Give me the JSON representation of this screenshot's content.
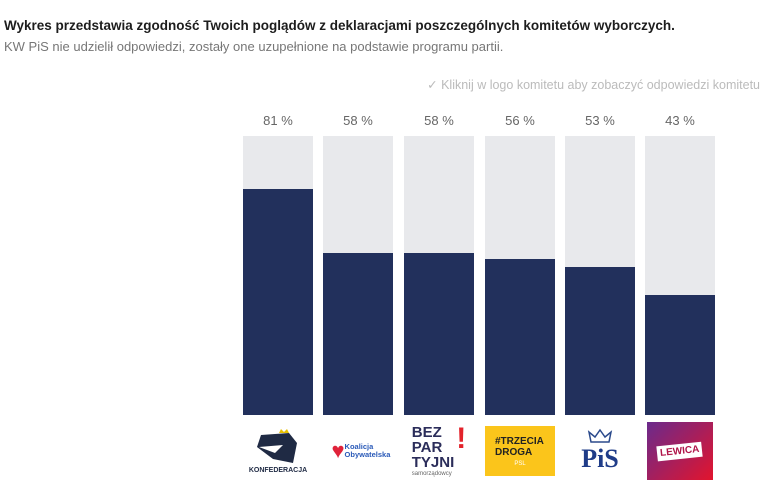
{
  "header": {
    "title": "Wykres przedstawia zgodność Twoich poglądów z deklaracjami poszczególnych komitetów wyborczych.",
    "subtitle": "KW PiS nie udzielił odpowiedzi, zostały one uzupełnione na podstawie programu partii.",
    "hint": "✓ Kliknij w logo komitetu aby zobaczyć odpowiedzi komitetu"
  },
  "chart_data": {
    "type": "bar",
    "categories": [
      "Konfederacja",
      "Koalicja Obywatelska",
      "Bezpartyjni Samorządowcy",
      "Trzecia Droga",
      "PiS",
      "Lewica"
    ],
    "values": [
      81,
      58,
      58,
      56,
      53,
      43
    ],
    "labels": [
      "81 %",
      "58 %",
      "58 %",
      "56 %",
      "53 %",
      "43 %"
    ],
    "ylim": [
      0,
      100
    ],
    "colors": {
      "fill": "#22305c",
      "track": "#e8e9ec"
    }
  },
  "logos": [
    {
      "text": "KONFEDERACJA"
    },
    {
      "text": "Koalicja Obywatelska"
    },
    {
      "line1": "BEZ",
      "line2": "PAR",
      "line3": "TYJNI",
      "small": "samorządowcy"
    },
    {
      "text": "#TRZECIA DROGA",
      "small": "PSL"
    },
    {
      "text": "PiS"
    },
    {
      "text": "LEWICA"
    }
  ]
}
